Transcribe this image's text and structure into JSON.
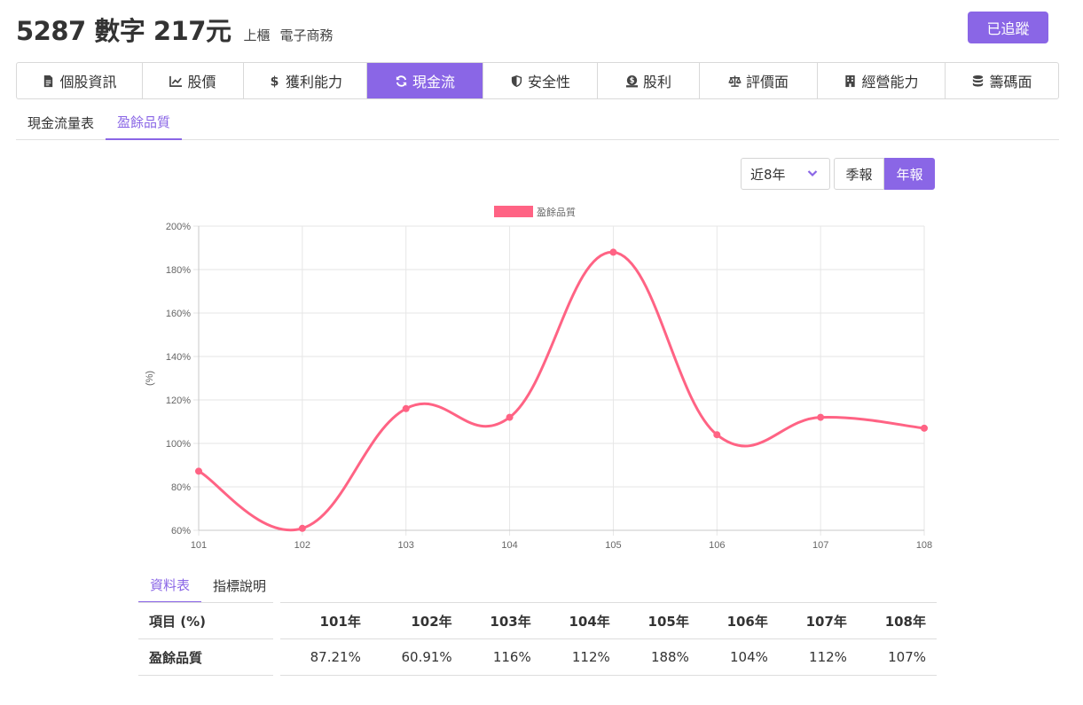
{
  "header": {
    "stock_title": "5287 數字 217元",
    "market": "上櫃",
    "industry": "電子商務",
    "follow_label": "已追蹤"
  },
  "tabs": [
    {
      "label": "個股資訊",
      "icon": "document-icon"
    },
    {
      "label": "股價",
      "icon": "line-chart-icon"
    },
    {
      "label": "獲利能力",
      "icon": "dollar-icon"
    },
    {
      "label": "現金流",
      "icon": "sync-icon",
      "active": true
    },
    {
      "label": "安全性",
      "icon": "shield-icon"
    },
    {
      "label": "股利",
      "icon": "money-bag-icon"
    },
    {
      "label": "評價面",
      "icon": "balance-scale-icon"
    },
    {
      "label": "經營能力",
      "icon": "building-icon"
    },
    {
      "label": "籌碼面",
      "icon": "database-icon"
    }
  ],
  "subtabs": [
    {
      "label": "現金流量表"
    },
    {
      "label": "盈餘品質",
      "active": true
    }
  ],
  "controls": {
    "period": "近8年",
    "quarterly_label": "季報",
    "annual_label": "年報"
  },
  "chart_data": {
    "type": "line",
    "categories": [
      "101",
      "102",
      "103",
      "104",
      "105",
      "106",
      "107",
      "108"
    ],
    "series": [
      {
        "name": "盈餘品質",
        "values": [
          87.21,
          60.91,
          116,
          112,
          188,
          104,
          112,
          107
        ],
        "color": "#ff6384"
      }
    ],
    "ylabel": "(%)",
    "ylim": [
      60,
      200
    ],
    "yticks": [
      "60%",
      "80%",
      "100%",
      "120%",
      "140%",
      "160%",
      "180%",
      "200%"
    ],
    "grid": true,
    "legend": "top"
  },
  "datatabs": [
    {
      "label": "資料表",
      "active": true
    },
    {
      "label": "指標說明"
    }
  ],
  "table": {
    "header_label": "項目 (%)",
    "columns": [
      "101年",
      "102年",
      "103年",
      "104年",
      "105年",
      "106年",
      "107年",
      "108年"
    ],
    "row_label": "盈餘品質",
    "values": [
      "87.21%",
      "60.91%",
      "116%",
      "112%",
      "188%",
      "104%",
      "112%",
      "107%"
    ]
  }
}
